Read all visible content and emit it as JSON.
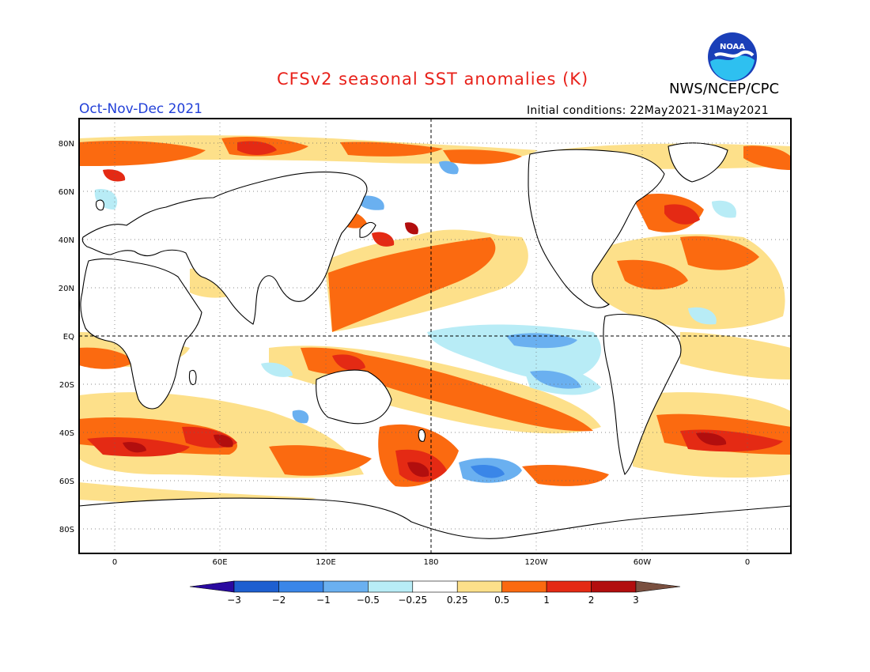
{
  "header": {
    "title": "CFSv2 seasonal SST anomalies (K)",
    "organization": "NWS/NCEP/CPC",
    "period": "Oct-Nov-Dec 2021",
    "initial_conditions": "Initial conditions: 22May2021-31May2021",
    "logo_text": "NOAA"
  },
  "axes": {
    "lat_labels": [
      "80N",
      "60N",
      "40N",
      "20N",
      "EQ",
      "20S",
      "40S",
      "60S",
      "80S"
    ],
    "lon_labels": [
      "0",
      "60E",
      "120E",
      "180",
      "120W",
      "60W",
      "0"
    ]
  },
  "colorbar": {
    "labels": [
      "−3",
      "−2",
      "−1",
      "−0.5",
      "−0.25",
      "0.25",
      "0.5",
      "1",
      "2",
      "3"
    ],
    "colors": [
      "#2a0aa0",
      "#1e5fd0",
      "#3a86e8",
      "#6ab0f0",
      "#b8ecf6",
      "#ffffff",
      "#fde08a",
      "#fb6a10",
      "#e42a14",
      "#b20e0e",
      "#7a5040"
    ]
  },
  "colors": {
    "title": "#e8211a",
    "period": "#2240d8",
    "land_outline": "#000000"
  }
}
